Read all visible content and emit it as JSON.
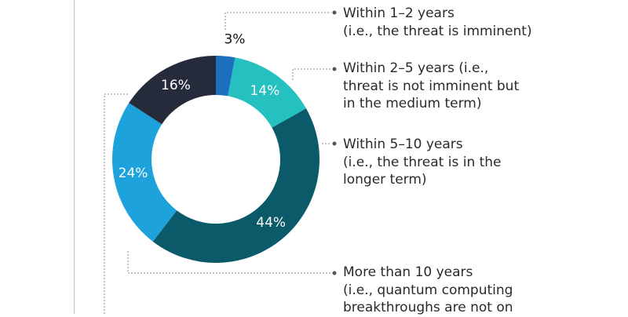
{
  "chart_data": {
    "type": "pie",
    "variant": "donut",
    "categories": [
      "Within 1–2 years\n(i.e., the threat is imminent)",
      "Within 2–5 years (i.e.,\nthreat is not imminent but\nin the medium term)",
      "Within 5–10 years\n(i.e., the threat is in the\nlonger term)",
      "More than 10 years\n(i.e., quantum computing\nbreakthroughs are not on",
      ""
    ],
    "values": [
      3,
      14,
      44,
      24,
      16
    ],
    "labels": [
      "3%",
      "14%",
      "44%",
      "24%",
      "16%"
    ],
    "colors": [
      "#1f6fbf",
      "#25c0c0",
      "#0b5a69",
      "#1ea2dc",
      "#262b3c"
    ],
    "legend_position": "right"
  }
}
